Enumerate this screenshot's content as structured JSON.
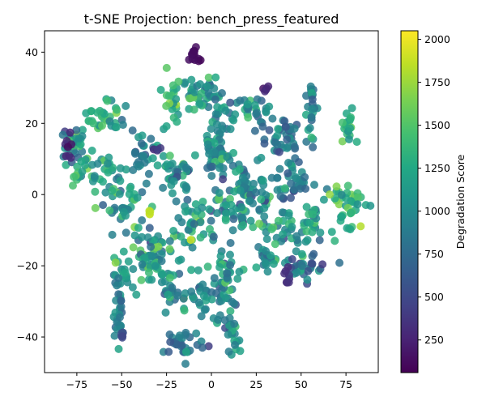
{
  "chart_data": {
    "type": "scatter",
    "title": "t-SNE Projection: bench_press_featured",
    "xlabel": "",
    "ylabel": "",
    "xlim": [
      -93,
      93
    ],
    "ylim": [
      -50,
      46
    ],
    "x_ticks": [
      -75,
      -50,
      -25,
      0,
      25,
      50,
      75
    ],
    "y_ticks": [
      -40,
      -20,
      0,
      20,
      40
    ],
    "grid": false,
    "marker": "circle",
    "colormap": "viridis",
    "point_alpha": 0.85,
    "colorbar": {
      "label": "Degradation Score",
      "range": [
        60,
        2050
      ],
      "ticks": [
        250,
        500,
        750,
        1000,
        1250,
        1500,
        1750,
        2000
      ]
    },
    "clusters": [
      {
        "cx": -10,
        "cy": 39,
        "rx": 3,
        "ry": 2,
        "n": 14,
        "value": 120,
        "spread": 40
      },
      {
        "cx": -5,
        "cy": 28,
        "rx": 9,
        "ry": 4,
        "n": 40,
        "value": 1100,
        "spread": 350
      },
      {
        "cx": -22,
        "cy": 26,
        "rx": 4,
        "ry": 6,
        "n": 24,
        "value": 1250,
        "spread": 400
      },
      {
        "cx": 5,
        "cy": 18,
        "rx": 6,
        "ry": 10,
        "n": 40,
        "value": 1000,
        "spread": 350
      },
      {
        "cx": -60,
        "cy": 22,
        "rx": 10,
        "ry": 4,
        "n": 35,
        "value": 1300,
        "spread": 450
      },
      {
        "cx": -78,
        "cy": 14,
        "rx": 5,
        "ry": 4,
        "n": 30,
        "value": 1000,
        "spread": 500
      },
      {
        "cx": -65,
        "cy": 6,
        "rx": 12,
        "ry": 6,
        "n": 45,
        "value": 1200,
        "spread": 400
      },
      {
        "cx": -38,
        "cy": 12,
        "rx": 8,
        "ry": 6,
        "n": 30,
        "value": 900,
        "spread": 350
      },
      {
        "cx": -20,
        "cy": 6,
        "rx": 10,
        "ry": 5,
        "n": 35,
        "value": 1000,
        "spread": 350
      },
      {
        "cx": 2,
        "cy": 12,
        "rx": 6,
        "ry": 5,
        "n": 28,
        "value": 950,
        "spread": 350
      },
      {
        "cx": -48,
        "cy": -4,
        "rx": 10,
        "ry": 5,
        "n": 35,
        "value": 1150,
        "spread": 400
      },
      {
        "cx": -32,
        "cy": -15,
        "rx": 10,
        "ry": 5,
        "n": 30,
        "value": 1150,
        "spread": 450
      },
      {
        "cx": -12,
        "cy": -10,
        "rx": 10,
        "ry": 8,
        "n": 45,
        "value": 1150,
        "spread": 450
      },
      {
        "cx": 8,
        "cy": -2,
        "rx": 12,
        "ry": 10,
        "n": 50,
        "value": 1050,
        "spread": 400
      },
      {
        "cx": 18,
        "cy": 0,
        "rx": 5,
        "ry": 8,
        "n": 25,
        "value": 1000,
        "spread": 350
      },
      {
        "cx": 22,
        "cy": 24,
        "rx": 8,
        "ry": 4,
        "n": 28,
        "value": 1000,
        "spread": 400
      },
      {
        "cx": 40,
        "cy": 16,
        "rx": 10,
        "ry": 6,
        "n": 40,
        "value": 850,
        "spread": 350
      },
      {
        "cx": 56,
        "cy": 24,
        "rx": 3,
        "ry": 7,
        "n": 25,
        "value": 950,
        "spread": 350
      },
      {
        "cx": 76,
        "cy": 20,
        "rx": 3,
        "ry": 4,
        "n": 18,
        "value": 1300,
        "spread": 250
      },
      {
        "cx": 48,
        "cy": 4,
        "rx": 10,
        "ry": 5,
        "n": 35,
        "value": 900,
        "spread": 350
      },
      {
        "cx": 30,
        "cy": 0,
        "rx": 10,
        "ry": 5,
        "n": 30,
        "value": 1050,
        "spread": 350
      },
      {
        "cx": 76,
        "cy": -3,
        "rx": 8,
        "ry": 7,
        "n": 40,
        "value": 1300,
        "spread": 400
      },
      {
        "cx": 40,
        "cy": -10,
        "rx": 10,
        "ry": 5,
        "n": 35,
        "value": 1150,
        "spread": 400
      },
      {
        "cx": 57,
        "cy": -8,
        "rx": 6,
        "ry": 4,
        "n": 22,
        "value": 1150,
        "spread": 450
      },
      {
        "cx": -35,
        "cy": -18,
        "rx": 8,
        "ry": 4,
        "n": 25,
        "value": 1150,
        "spread": 400
      },
      {
        "cx": 50,
        "cy": -20,
        "rx": 10,
        "ry": 4,
        "n": 35,
        "value": 850,
        "spread": 300
      },
      {
        "cx": 30,
        "cy": -18,
        "rx": 6,
        "ry": 3,
        "n": 20,
        "value": 1000,
        "spread": 300
      },
      {
        "cx": -50,
        "cy": -22,
        "rx": 6,
        "ry": 4,
        "n": 22,
        "value": 1100,
        "spread": 300
      },
      {
        "cx": -52,
        "cy": -33,
        "rx": 3,
        "ry": 8,
        "n": 25,
        "value": 900,
        "spread": 300
      },
      {
        "cx": -25,
        "cy": -25,
        "rx": 6,
        "ry": 6,
        "n": 25,
        "value": 1050,
        "spread": 350
      },
      {
        "cx": -10,
        "cy": -30,
        "rx": 8,
        "ry": 4,
        "n": 25,
        "value": 1000,
        "spread": 350
      },
      {
        "cx": 5,
        "cy": -28,
        "rx": 6,
        "ry": 6,
        "n": 28,
        "value": 950,
        "spread": 350
      },
      {
        "cx": 10,
        "cy": -20,
        "rx": 6,
        "ry": 4,
        "n": 20,
        "value": 1100,
        "spread": 400
      },
      {
        "cx": 12,
        "cy": -38,
        "rx": 4,
        "ry": 6,
        "n": 25,
        "value": 1000,
        "spread": 350
      },
      {
        "cx": -15,
        "cy": -42,
        "rx": 10,
        "ry": 3,
        "n": 30,
        "value": 850,
        "spread": 350
      },
      {
        "cx": -50,
        "cy": -39,
        "rx": 1,
        "ry": 1,
        "n": 6,
        "value": 500,
        "spread": 50
      },
      {
        "cx": 44,
        "cy": -23,
        "rx": 4,
        "ry": 2,
        "n": 8,
        "value": 350,
        "spread": 100
      },
      {
        "cx": 31,
        "cy": 30,
        "rx": 2,
        "ry": 1,
        "n": 5,
        "value": 250,
        "spread": 80
      },
      {
        "cx": -80,
        "cy": 13,
        "rx": 2,
        "ry": 4,
        "n": 8,
        "value": 300,
        "spread": 150
      },
      {
        "cx": -30,
        "cy": 13,
        "rx": 2,
        "ry": 1,
        "n": 4,
        "value": 350,
        "spread": 100
      },
      {
        "cx": -35,
        "cy": -5,
        "rx": 2,
        "ry": 1,
        "n": 4,
        "value": 1850,
        "spread": 100
      }
    ]
  }
}
